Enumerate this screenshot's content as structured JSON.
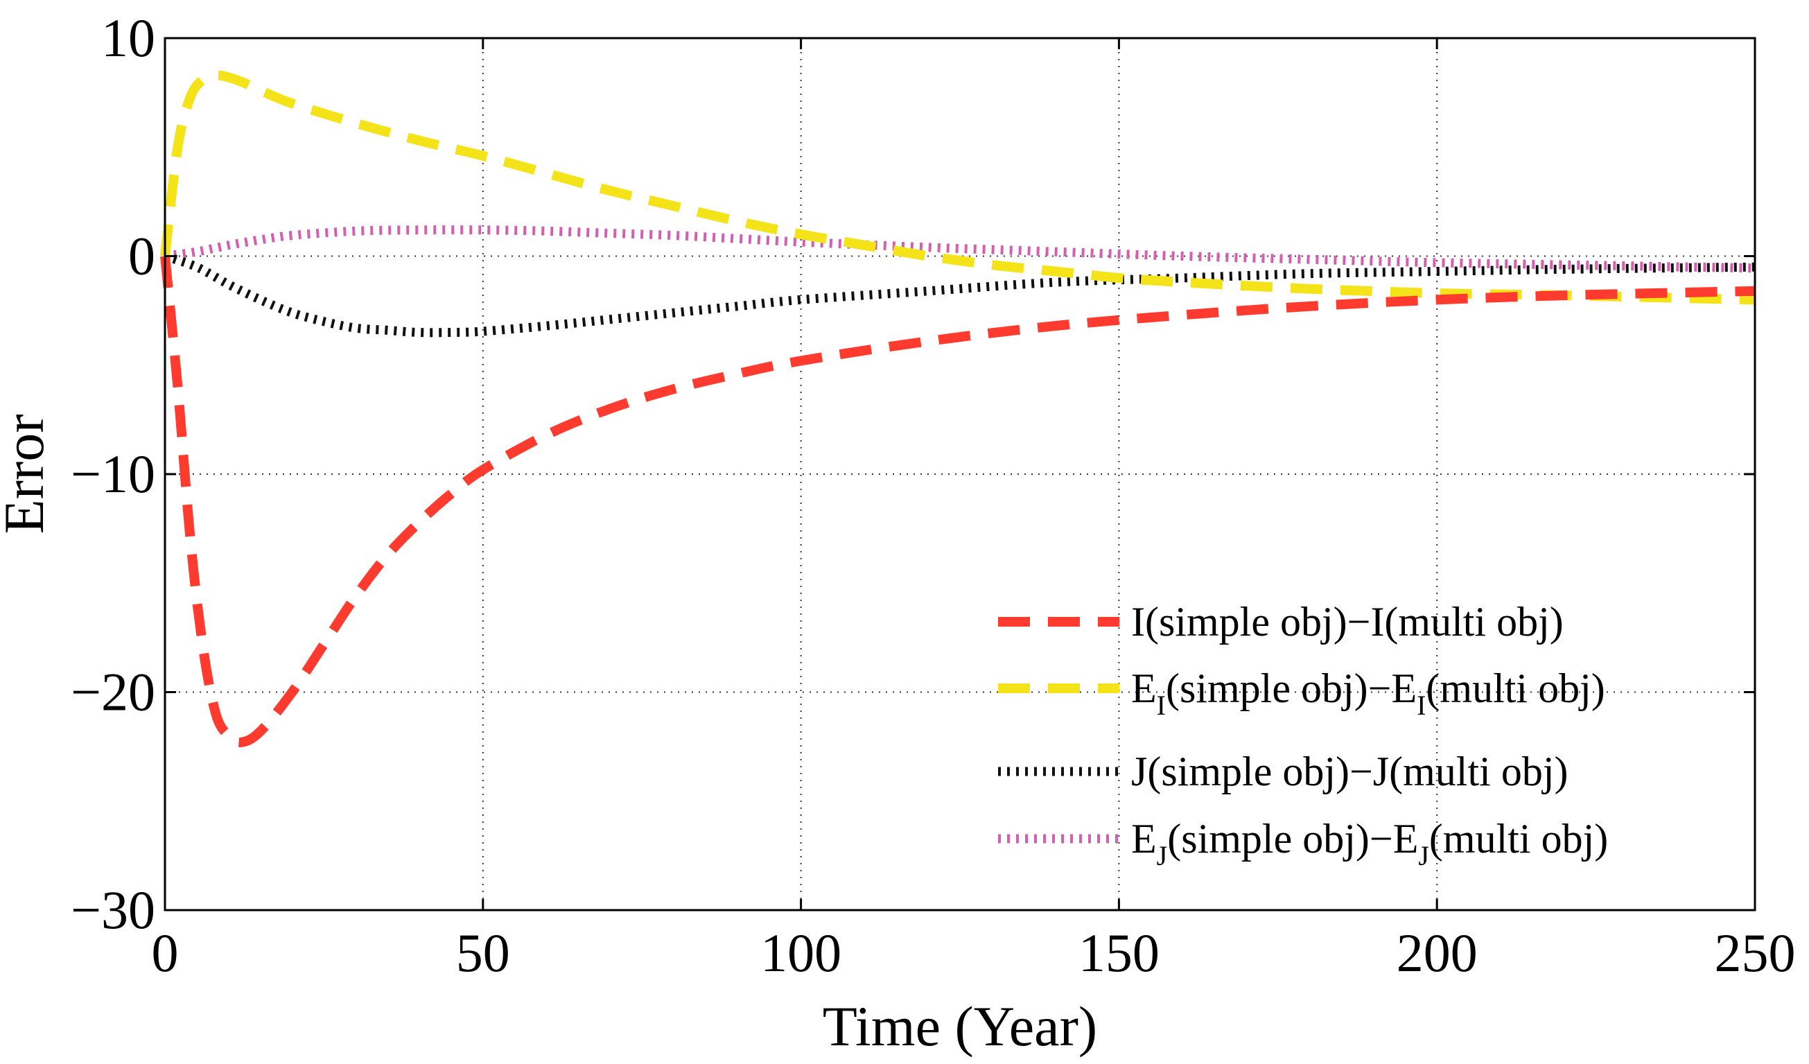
{
  "chart_data": {
    "type": "line",
    "title": "",
    "xlabel": "Time (Year)",
    "ylabel": "Error",
    "xlim": [
      0,
      250
    ],
    "ylim": [
      -30,
      10
    ],
    "xticks": [
      0,
      50,
      100,
      150,
      200,
      250
    ],
    "yticks": [
      10,
      0,
      -10,
      -20,
      -30
    ],
    "xtick_labels": [
      "0",
      "50",
      "100",
      "150",
      "200",
      "250"
    ],
    "ytick_labels": [
      "10",
      "0",
      "−10",
      "−20",
      "−30"
    ],
    "grid": true,
    "legend_position": "lower-right",
    "series": [
      {
        "name": "I(simple obj)−I(multi obj)",
        "legend": {
          "a": "I(simple obj)−I(multi obj)",
          "a_sub": "",
          "b": "",
          "b_sub": "",
          "c": ""
        },
        "color": "#ff3b30",
        "style": "dashed",
        "x": [
          0,
          2,
          4,
          6,
          8,
          10,
          12,
          15,
          20,
          25,
          30,
          35,
          40,
          45,
          50,
          60,
          70,
          80,
          90,
          100,
          120,
          140,
          160,
          180,
          200,
          220,
          250
        ],
        "y": [
          0,
          -6,
          -13,
          -18,
          -21,
          -22,
          -22.3,
          -21.8,
          -20,
          -17.8,
          -15.6,
          -13.7,
          -12.2,
          -10.9,
          -9.8,
          -8.2,
          -7,
          -6.1,
          -5.4,
          -4.8,
          -3.9,
          -3.2,
          -2.7,
          -2.3,
          -2,
          -1.8,
          -1.6
        ]
      },
      {
        "name": "E_I(simple obj)−E_I(multi obj)",
        "legend": {
          "a": "E",
          "a_sub": "I",
          "b": "(simple obj)−E",
          "b_sub": "I",
          "c": "(multi obj)"
        },
        "color": "#f5e31a",
        "style": "dashed",
        "x": [
          0,
          2,
          4,
          6,
          8,
          10,
          12,
          15,
          20,
          30,
          40,
          50,
          60,
          70,
          80,
          90,
          100,
          110,
          120,
          130,
          140,
          150,
          160,
          180,
          200,
          220,
          250
        ],
        "y": [
          0,
          5,
          7.3,
          8.1,
          8.3,
          8.2,
          8,
          7.6,
          7,
          6.1,
          5.3,
          4.6,
          3.8,
          3,
          2.3,
          1.6,
          1,
          0.5,
          0,
          -0.4,
          -0.7,
          -1,
          -1.2,
          -1.5,
          -1.7,
          -1.8,
          -2
        ]
      },
      {
        "name": "J(simple obj)−J(multi obj)",
        "legend": {
          "a": "J(simple obj)−J(multi obj)",
          "a_sub": "",
          "b": "",
          "b_sub": "",
          "c": ""
        },
        "color": "#111111",
        "style": "dotted",
        "x": [
          0,
          5,
          10,
          15,
          20,
          25,
          30,
          35,
          40,
          45,
          50,
          60,
          70,
          80,
          90,
          100,
          120,
          140,
          160,
          180,
          200,
          220,
          250
        ],
        "y": [
          0,
          -0.5,
          -1.3,
          -2,
          -2.6,
          -3,
          -3.3,
          -3.4,
          -3.5,
          -3.5,
          -3.45,
          -3.2,
          -2.9,
          -2.6,
          -2.3,
          -2,
          -1.6,
          -1.2,
          -1,
          -0.8,
          -0.7,
          -0.6,
          -0.5
        ]
      },
      {
        "name": "E_J(simple obj)−E_J(multi obj)",
        "legend": {
          "a": "E",
          "a_sub": "J",
          "b": "(simple obj)−E",
          "b_sub": "J",
          "c": "(multi obj)"
        },
        "color": "#d45fb0",
        "style": "dotted",
        "x": [
          0,
          5,
          10,
          15,
          20,
          30,
          40,
          50,
          60,
          70,
          80,
          90,
          100,
          120,
          140,
          160,
          180,
          200,
          220,
          250
        ],
        "y": [
          0,
          0.2,
          0.5,
          0.75,
          0.95,
          1.15,
          1.2,
          1.2,
          1.15,
          1.05,
          0.95,
          0.8,
          0.65,
          0.4,
          0.2,
          0,
          -0.15,
          -0.3,
          -0.4,
          -0.55
        ]
      }
    ]
  }
}
